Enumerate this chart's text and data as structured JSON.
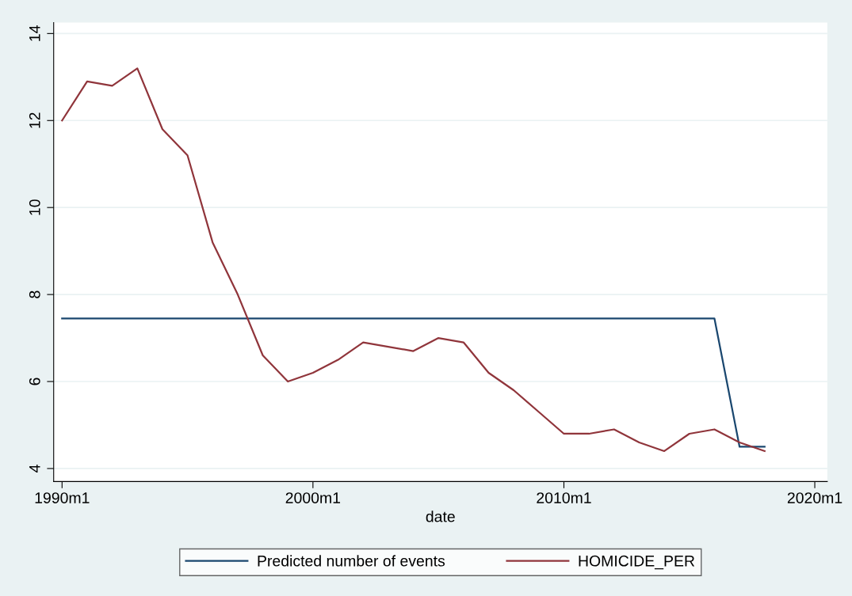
{
  "chart_data": {
    "type": "line",
    "xlabel": "date",
    "x": [
      "1990-01",
      "1991-01",
      "1992-01",
      "1993-01",
      "1994-01",
      "1995-01",
      "1996-01",
      "1997-01",
      "1998-01",
      "1999-01",
      "2000-01",
      "2001-01",
      "2002-01",
      "2003-01",
      "2004-01",
      "2005-01",
      "2006-01",
      "2007-01",
      "2008-01",
      "2009-01",
      "2010-01",
      "2011-01",
      "2012-01",
      "2013-01",
      "2014-01",
      "2015-01",
      "2016-01",
      "2017-01",
      "2018-01"
    ],
    "series": [
      {
        "name": "Predicted number of events",
        "color": "#1a476f",
        "values": [
          7.45,
          7.45,
          7.45,
          7.45,
          7.45,
          7.45,
          7.45,
          7.45,
          7.45,
          7.45,
          7.45,
          7.45,
          7.45,
          7.45,
          7.45,
          7.45,
          7.45,
          7.45,
          7.45,
          7.45,
          7.45,
          7.45,
          7.45,
          7.45,
          7.45,
          7.45,
          7.45,
          4.5,
          4.5
        ]
      },
      {
        "name": "HOMICIDE_PER",
        "color": "#90353b",
        "values": [
          12.0,
          12.9,
          12.8,
          13.2,
          11.8,
          11.2,
          9.2,
          8.0,
          6.6,
          6.0,
          6.2,
          6.5,
          6.9,
          6.8,
          6.7,
          7.0,
          6.9,
          6.2,
          5.8,
          5.3,
          4.8,
          4.8,
          4.9,
          4.6,
          4.4,
          4.8,
          4.9,
          4.6,
          4.4
        ]
      }
    ],
    "xlim": [
      "1989-09",
      "2020-07"
    ],
    "ylim": [
      3.7,
      14.25
    ],
    "xticks": [
      {
        "value": "1990-01",
        "label": "1990m1"
      },
      {
        "value": "2000-01",
        "label": "2000m1"
      },
      {
        "value": "2010-01",
        "label": "2010m1"
      },
      {
        "value": "2020-01",
        "label": "2020m1"
      }
    ],
    "yticks": [
      4,
      6,
      8,
      10,
      12,
      14
    ],
    "grid": "y",
    "legend": "bottom",
    "marker": "none",
    "line_style": "solid"
  }
}
